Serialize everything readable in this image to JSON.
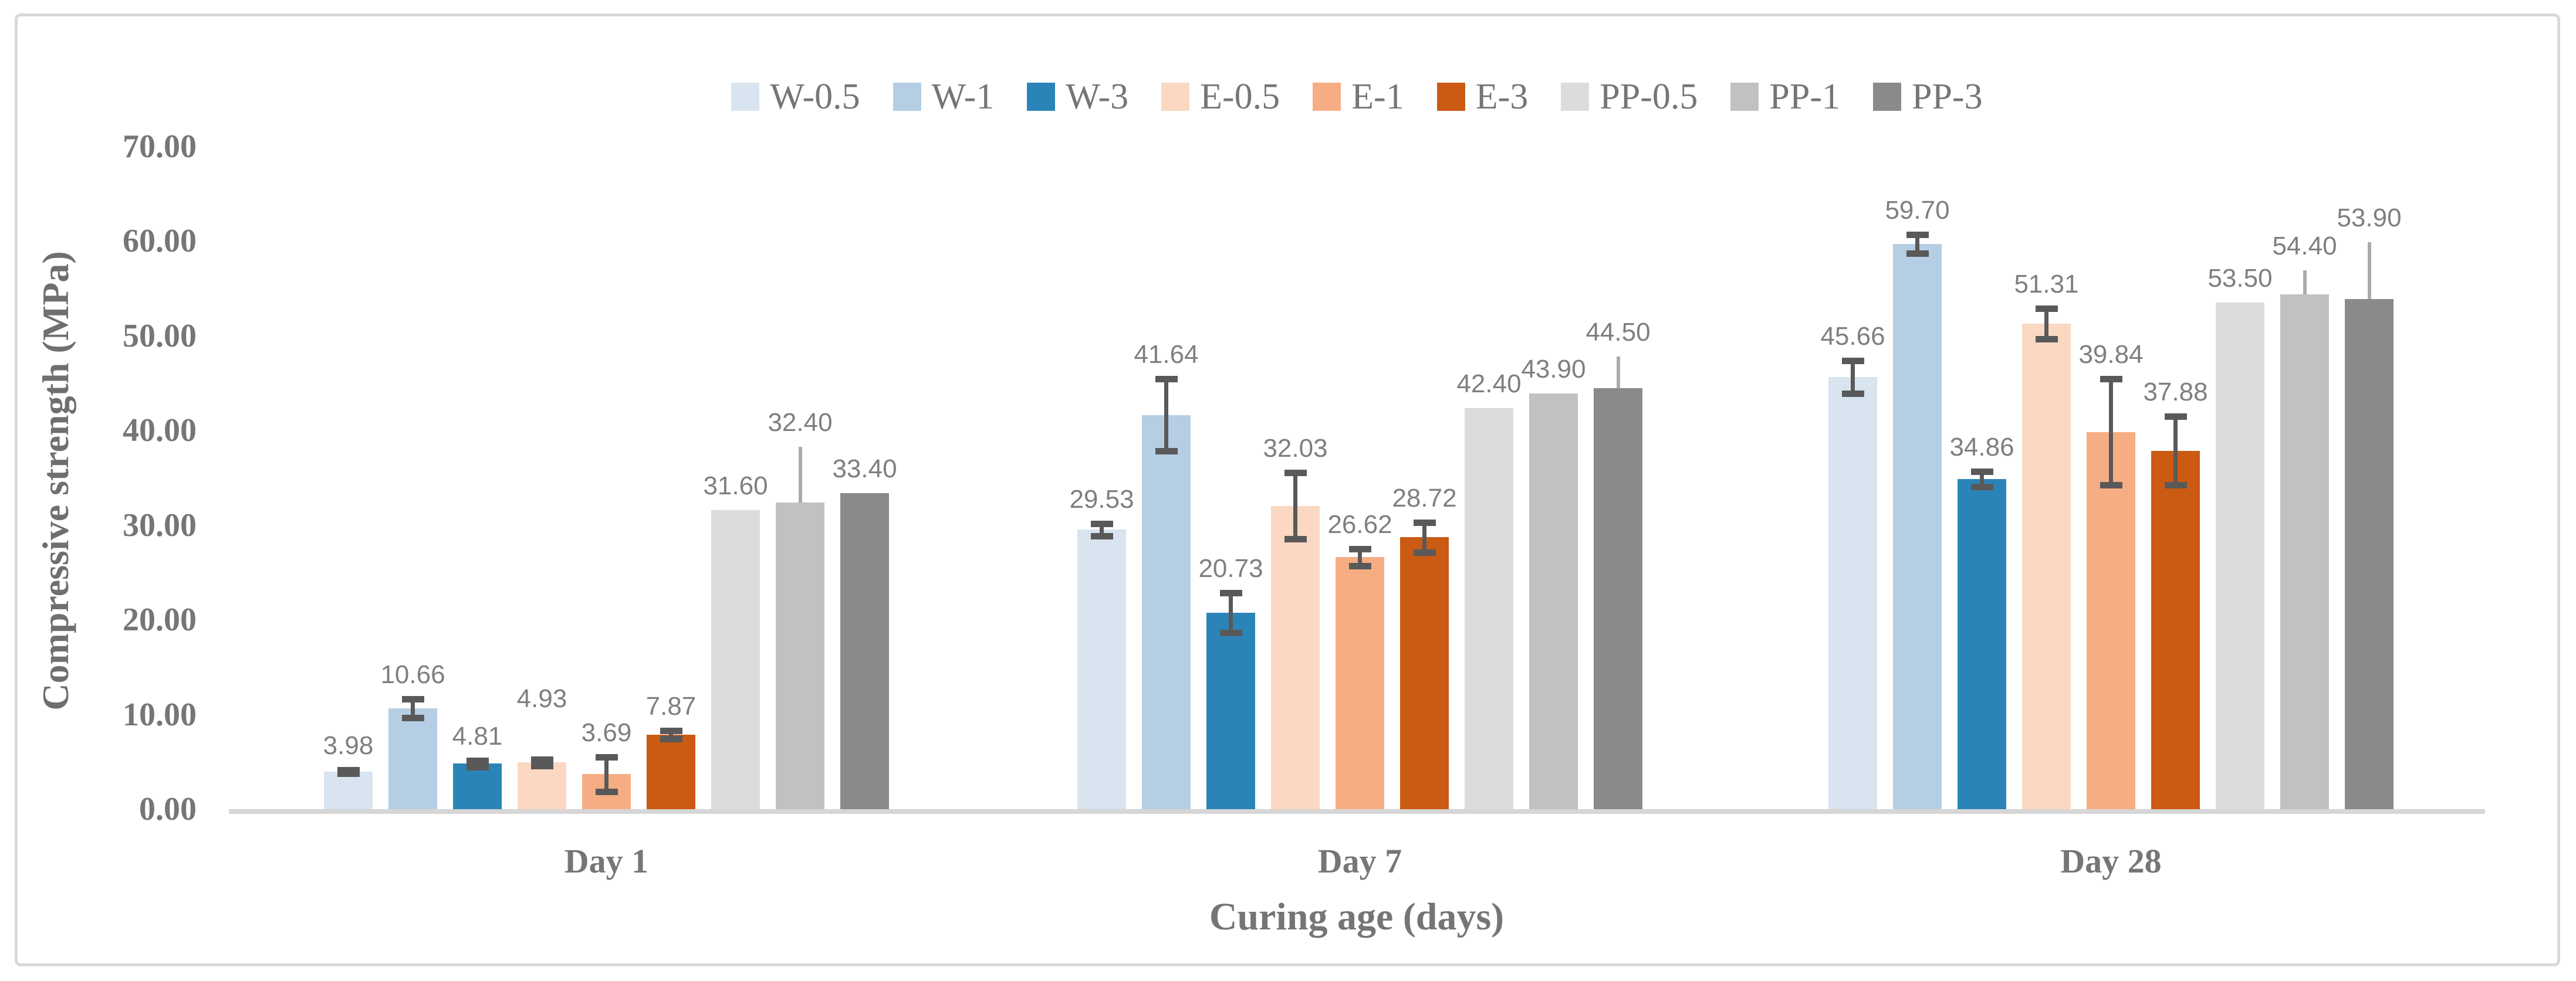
{
  "chart_data": {
    "type": "bar",
    "title": "",
    "xlabel": "Curing age (days)",
    "ylabel": "Compressive strength (MPa)",
    "ylim": [
      0,
      70
    ],
    "grid": false,
    "legend_position": "top-center",
    "categories": [
      "Day 1",
      "Day 7",
      "Day 28"
    ],
    "yticks": [
      {
        "v": 0,
        "label": "0.00"
      },
      {
        "v": 10,
        "label": "10.00"
      },
      {
        "v": 20,
        "label": "20.00"
      },
      {
        "v": 30,
        "label": "30.00"
      },
      {
        "v": 40,
        "label": "40.00"
      },
      {
        "v": 50,
        "label": "50.00"
      },
      {
        "v": 60,
        "label": "60.00"
      },
      {
        "v": 70,
        "label": "70.00"
      }
    ],
    "colors": {
      "error_bar_dark": "#595959",
      "error_bar_light": "#ababab",
      "axis_line": "#d6d6d6",
      "frame_border": "#d9d9d9",
      "axis_text": "#767676",
      "data_label_text": "#7f7f7f"
    },
    "series": [
      {
        "name": "W-0.5",
        "color": "#d8e4ef",
        "bars": [
          {
            "v": 3.98,
            "label": "3.98",
            "err": {
              "d": 0.2,
              "u": 0.2,
              "s": "dark"
            }
          },
          {
            "v": 29.53,
            "label": "29.53",
            "err": {
              "d": 0.65,
              "u": 0.65,
              "s": "dark"
            }
          },
          {
            "v": 45.66,
            "label": "45.66",
            "err": {
              "d": 1.75,
              "u": 1.75,
              "s": "dark"
            }
          }
        ]
      },
      {
        "name": "W-1",
        "color": "#b5cee4",
        "bars": [
          {
            "v": 10.66,
            "label": "10.66",
            "err": {
              "d": 1.0,
              "u": 1.0,
              "s": "dark"
            }
          },
          {
            "v": 41.64,
            "label": "41.64",
            "err": {
              "d": 3.8,
              "u": 3.8,
              "s": "dark"
            }
          },
          {
            "v": 59.7,
            "label": "59.70",
            "err": {
              "d": 1.0,
              "u": 1.0,
              "s": "dark"
            }
          }
        ]
      },
      {
        "name": "W-3",
        "color": "#2b84b8",
        "bars": [
          {
            "v": 4.81,
            "label": "4.81",
            "err": {
              "d": 0.35,
              "u": 0.35,
              "s": "dark"
            }
          },
          {
            "v": 20.73,
            "label": "20.73",
            "err": {
              "d": 2.1,
              "u": 2.1,
              "s": "dark"
            }
          },
          {
            "v": 34.86,
            "label": "34.86",
            "err": {
              "d": 0.8,
              "u": 0.8,
              "s": "dark"
            }
          }
        ]
      },
      {
        "name": "E-0.5",
        "color": "#fad8c1",
        "bars": [
          {
            "v": 4.93,
            "label": "4.93",
            "err": {
              "d": 0.35,
              "u": 0.35,
              "s": "dark"
            },
            "dy": 62
          },
          {
            "v": 32.03,
            "label": "32.03",
            "err": {
              "d": 3.5,
              "u": 3.5,
              "s": "dark"
            }
          },
          {
            "v": 51.31,
            "label": "51.31",
            "err": {
              "d": 1.6,
              "u": 1.6,
              "s": "dark"
            }
          }
        ]
      },
      {
        "name": "E-1",
        "color": "#f6ad83",
        "bars": [
          {
            "v": 3.69,
            "label": "3.69",
            "err": {
              "d": 1.85,
              "u": 1.85,
              "s": "dark"
            }
          },
          {
            "v": 26.62,
            "label": "26.62",
            "err": {
              "d": 0.9,
              "u": 0.9,
              "s": "dark"
            }
          },
          {
            "v": 39.84,
            "label": "39.84",
            "err": {
              "d": 5.6,
              "u": 5.6,
              "s": "dark"
            }
          }
        ]
      },
      {
        "name": "E-3",
        "color": "#cb5a13",
        "bars": [
          {
            "v": 7.87,
            "label": "7.87",
            "err": {
              "d": 0.45,
              "u": 0.45,
              "s": "dark"
            }
          },
          {
            "v": 28.72,
            "label": "28.72",
            "err": {
              "d": 1.6,
              "u": 1.6,
              "s": "dark"
            }
          },
          {
            "v": 37.88,
            "label": "37.88",
            "err": {
              "d": 3.6,
              "u": 3.6,
              "s": "dark"
            }
          }
        ]
      },
      {
        "name": "PP-0.5",
        "color": "#dcdcdc",
        "bars": [
          {
            "v": 31.6,
            "label": "31.60",
            "err": null
          },
          {
            "v": 42.4,
            "label": "42.40",
            "err": null
          },
          {
            "v": 53.5,
            "label": "53.50",
            "err": null
          }
        ]
      },
      {
        "name": "PP-1",
        "color": "#c1c1c1",
        "bars": [
          {
            "v": 32.4,
            "label": "32.40",
            "err": {
              "d": 0,
              "u": 5.9,
              "s": "light"
            }
          },
          {
            "v": 43.9,
            "label": "43.90",
            "err": null
          },
          {
            "v": 54.4,
            "label": "54.40",
            "err": {
              "d": 0,
              "u": 2.5,
              "s": "light"
            }
          }
        ]
      },
      {
        "name": "PP-3",
        "color": "#8a8a8a",
        "bars": [
          {
            "v": 33.4,
            "label": "33.40",
            "err": null
          },
          {
            "v": 44.5,
            "label": "44.50",
            "err": {
              "d": 0,
              "u": 3.3,
              "s": "light"
            }
          },
          {
            "v": 53.9,
            "label": "53.90",
            "err": {
              "d": 0,
              "u": 6.0,
              "s": "light"
            }
          }
        ]
      }
    ]
  }
}
